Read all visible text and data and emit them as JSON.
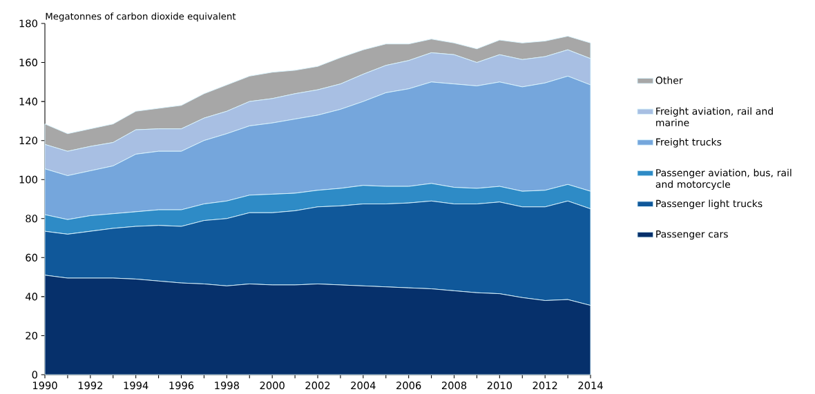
{
  "chart_data": {
    "type": "area",
    "stacked": true,
    "ylabel": "Megatonnes of carbon dioxide equivalent",
    "x": [
      1990,
      1991,
      1992,
      1993,
      1994,
      1995,
      1996,
      1997,
      1998,
      1999,
      2000,
      2001,
      2002,
      2003,
      2004,
      2005,
      2006,
      2007,
      2008,
      2009,
      2010,
      2011,
      2012,
      2013,
      2014
    ],
    "series": [
      {
        "name": "Passenger cars",
        "color": "#06306b",
        "values": [
          51,
          49.5,
          49.5,
          49.5,
          49,
          48,
          47,
          46.5,
          45.5,
          46.5,
          46,
          46,
          46.5,
          46,
          45.5,
          45,
          44.5,
          44,
          43,
          42,
          41.5,
          39.5,
          38,
          38.5,
          35.5
        ]
      },
      {
        "name": "Passenger light trucks",
        "color": "#10589a",
        "values": [
          22.5,
          22.5,
          24,
          25.5,
          27,
          28.5,
          29,
          32.5,
          34.5,
          36.5,
          37,
          38,
          39.5,
          40.5,
          42,
          42.5,
          43.5,
          45,
          44.5,
          45.5,
          47,
          46.5,
          48,
          50.5,
          49.5
        ]
      },
      {
        "name": "Passenger aviation, bus, rail and motorcycle",
        "color": "#2e8bc6",
        "values": [
          8.5,
          7.5,
          8,
          7.5,
          7.5,
          8,
          8.5,
          8.5,
          9,
          9,
          9.5,
          9,
          8.5,
          9,
          9.5,
          9,
          8.5,
          9,
          8.5,
          8,
          8,
          8,
          8.5,
          8.5,
          9
        ]
      },
      {
        "name": "Freight trucks",
        "color": "#75a6dc",
        "values": [
          23.5,
          22.5,
          23,
          24.5,
          29.5,
          30,
          30,
          32.5,
          34.5,
          35.5,
          36.5,
          38,
          38.5,
          40.5,
          43,
          48,
          50,
          52,
          53,
          52.5,
          53.5,
          53.5,
          55,
          55.5,
          54.5
        ]
      },
      {
        "name": "Freight aviation, rail and marine",
        "color": "#a8bfe3",
        "values": [
          12.5,
          12.5,
          12.5,
          12,
          12.5,
          11.5,
          11.5,
          11.5,
          11.5,
          12.5,
          12.5,
          13,
          13,
          13,
          14,
          14,
          14.5,
          15,
          15,
          12,
          14,
          14,
          13.5,
          13.5,
          13.5
        ]
      },
      {
        "name": "Other",
        "color": "#a7a7a7",
        "values": [
          10.5,
          9,
          9,
          9.5,
          9.5,
          10.5,
          12,
          12.5,
          13.5,
          13,
          13.5,
          12,
          12,
          13.5,
          12.5,
          11,
          8.5,
          7,
          6,
          7,
          7.5,
          8.5,
          8,
          7,
          8
        ]
      }
    ],
    "xlim": [
      1990,
      2014
    ],
    "ylim": [
      0,
      180
    ],
    "xticks": [
      1990,
      {
        "value": 1991,
        "label": null
      },
      1992,
      {
        "value": 1993,
        "label": null
      },
      1994,
      {
        "value": 1995,
        "label": null
      },
      1996,
      {
        "value": 1997,
        "label": null
      },
      1998,
      {
        "value": 1999,
        "label": null
      },
      2000,
      {
        "value": 2001,
        "label": null
      },
      2002,
      {
        "value": 2003,
        "label": null
      },
      2004,
      {
        "value": 2005,
        "label": null
      },
      2006,
      {
        "value": 2007,
        "label": null
      },
      2008,
      {
        "value": 2009,
        "label": null
      },
      2010,
      {
        "value": 2011,
        "label": null
      },
      2012,
      {
        "value": 2013,
        "label": null
      },
      2014
    ],
    "yticks": [
      0,
      20,
      40,
      60,
      80,
      100,
      120,
      140,
      160,
      180
    ],
    "grid": false,
    "legend": "right"
  }
}
